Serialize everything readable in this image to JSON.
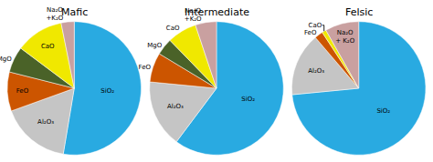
{
  "chart_data": [
    {
      "type": "pie",
      "title": "Mafic",
      "categories": [
        "SiO₂",
        "Al₂O₃",
        "FeO",
        "MgO",
        "CaO",
        "Na₂O\n+K₂O"
      ],
      "values": [
        50,
        16,
        9,
        6,
        11,
        3
      ],
      "colors": [
        "#29aae1",
        "#c5c5c5",
        "#cc5500",
        "#4a6228",
        "#f0e800",
        "#c9a0a0"
      ]
    },
    {
      "type": "pie",
      "title": "Intermediate",
      "categories": [
        "SiO₂",
        "Al₂O₃",
        "FeO",
        "MgO",
        "CaO",
        "Na₂O\n+K₂O"
      ],
      "values": [
        59,
        16,
        7,
        4,
        7,
        5
      ],
      "colors": [
        "#29aae1",
        "#c5c5c5",
        "#cc5500",
        "#4a6228",
        "#f0e800",
        "#c9a0a0"
      ]
    },
    {
      "type": "pie",
      "title": "Felsic",
      "categories": [
        "SiO₂",
        "Al₂O₃",
        "FeO",
        "CaO",
        "Na₂O\n+ K₂O"
      ],
      "values": [
        72,
        15,
        2,
        1,
        8
      ],
      "colors": [
        "#29aae1",
        "#c5c5c5",
        "#cc5500",
        "#f0e800",
        "#c9a0a0"
      ]
    }
  ]
}
